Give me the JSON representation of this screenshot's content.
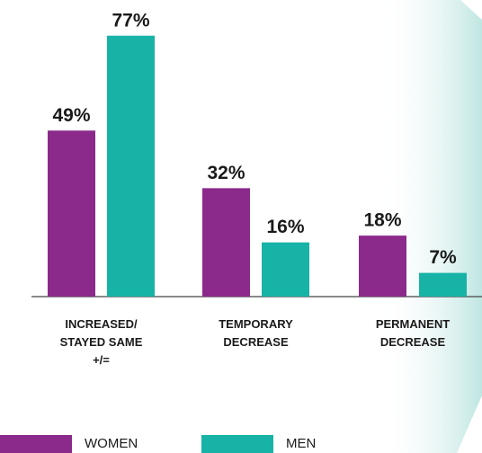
{
  "chart_data": {
    "type": "bar",
    "categories": [
      "INCREASED/\nSTAYED SAME\n+/=",
      "TEMPORARY\nDECREASE",
      "PERMANENT\nDECREASE"
    ],
    "series": [
      {
        "name": "WOMEN",
        "color": "#8b2a8b",
        "values": [
          49,
          32,
          18
        ],
        "value_labels": [
          "49%",
          "32%",
          "18%"
        ]
      },
      {
        "name": "MEN",
        "color": "#17b3a6",
        "values": [
          77,
          16,
          7
        ],
        "value_labels": [
          "77%",
          "16%",
          "7%"
        ]
      }
    ]
  }
}
